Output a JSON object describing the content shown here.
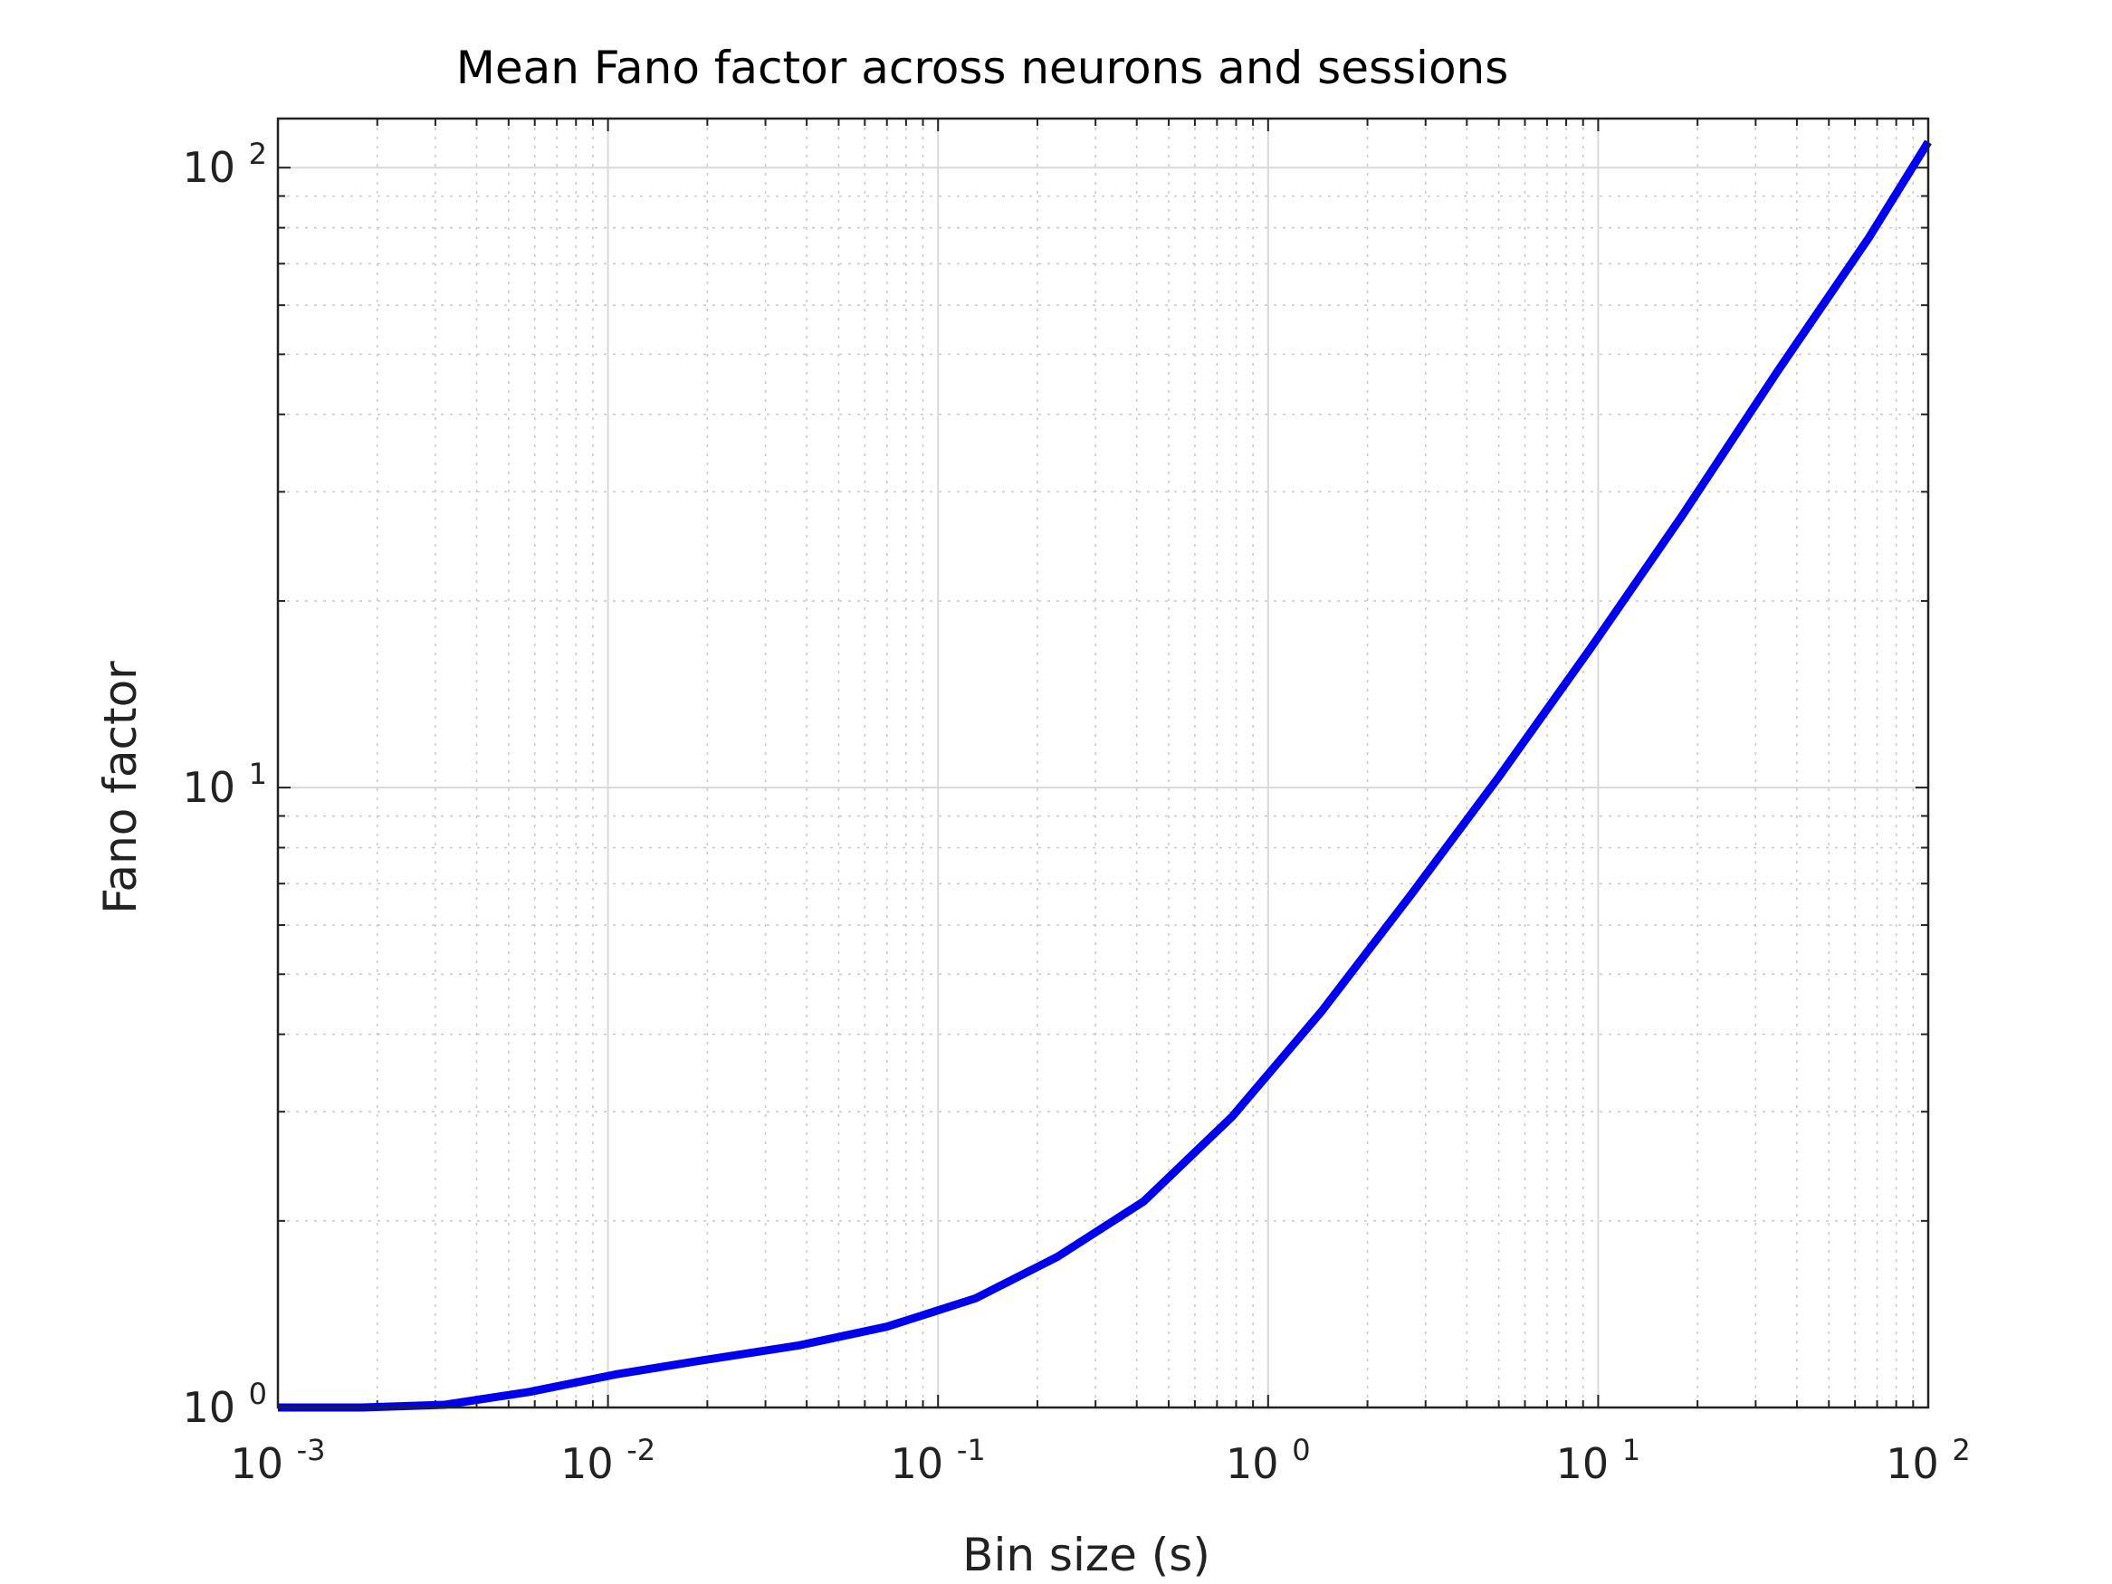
{
  "chart_data": {
    "type": "line",
    "title": "Mean Fano factor across neurons and sessions",
    "xlabel": "Bin size (s)",
    "ylabel": "Fano factor",
    "xscale": "log",
    "yscale": "log",
    "xlim": [
      0.001,
      100
    ],
    "ylim": [
      1,
      120
    ],
    "grid": true,
    "legend": "none",
    "x_ticks": [
      {
        "base": "10",
        "exp": "-3",
        "value": 0.001
      },
      {
        "base": "10",
        "exp": "-2",
        "value": 0.01
      },
      {
        "base": "10",
        "exp": "-1",
        "value": 0.1
      },
      {
        "base": "10",
        "exp": "0",
        "value": 1
      },
      {
        "base": "10",
        "exp": "1",
        "value": 10
      },
      {
        "base": "10",
        "exp": "2",
        "value": 100
      }
    ],
    "y_ticks": [
      {
        "base": "10",
        "exp": "0",
        "value": 1
      },
      {
        "base": "10",
        "exp": "1",
        "value": 10
      },
      {
        "base": "10",
        "exp": "2",
        "value": 100
      }
    ],
    "series": [
      {
        "color": "#0000ee",
        "x": [
          0.001,
          0.0018,
          0.0032,
          0.0058,
          0.0105,
          0.019,
          0.038,
          0.07,
          0.13,
          0.23,
          0.42,
          0.78,
          1.45,
          2.7,
          5.0,
          9.5,
          18,
          35,
          66,
          100
        ],
        "y": [
          1.0,
          1.0,
          1.01,
          1.06,
          1.13,
          1.19,
          1.26,
          1.35,
          1.5,
          1.75,
          2.15,
          2.95,
          4.35,
          6.7,
          10.4,
          16.8,
          27.5,
          47.0,
          77.0,
          110.0
        ]
      }
    ]
  }
}
